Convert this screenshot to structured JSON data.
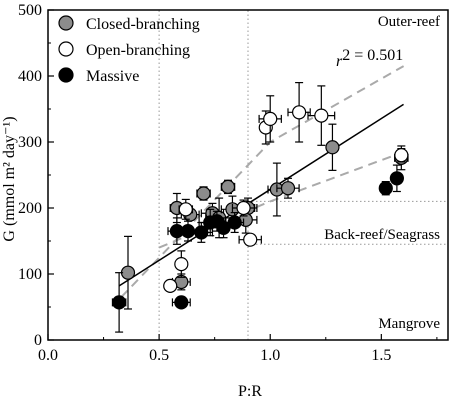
{
  "chart_data": {
    "type": "scatter",
    "xlabel": "P:R",
    "ylabel": "G (mmol m² day⁻¹)",
    "xlim": [
      0,
      1.8
    ],
    "ylim": [
      0,
      500
    ],
    "xticks": [
      "0.0",
      "0.5",
      "1.0",
      "1.5"
    ],
    "yticks": [
      "0",
      "100",
      "200",
      "300",
      "400",
      "500"
    ],
    "legend_position": "top-left",
    "grid": false,
    "r2_label": "r",
    "r2_value": "2 = 0.501",
    "regions": [
      {
        "label": "Outer-reef",
        "position": "top-right"
      },
      {
        "label": "Back-reef/Seagrass",
        "position": "middle-right"
      },
      {
        "label": "Mangrove",
        "position": "bottom-right"
      }
    ],
    "reference_lines": {
      "vertical_x": [
        0.5,
        0.9
      ],
      "horizontal_y": [
        145,
        210
      ]
    },
    "fit": {
      "x0": 0.32,
      "y0": 82,
      "x1": 1.6,
      "y1": 357,
      "ci_upper": [
        [
          0.33,
          65
        ],
        [
          1.0,
          300
        ],
        [
          1.6,
          415
        ]
      ],
      "ci_lower": [
        [
          0.5,
          140
        ],
        [
          1.0,
          210
        ],
        [
          1.6,
          285
        ]
      ]
    },
    "series": [
      {
        "name": "Closed-branching",
        "color": "#8c8c8c",
        "points": [
          {
            "x": 0.36,
            "y": 102,
            "yerr": 55,
            "xerr": 0
          },
          {
            "x": 0.58,
            "y": 200,
            "yerr": 22,
            "xerr": 0.03
          },
          {
            "x": 0.6,
            "y": 88,
            "yerr": 12,
            "xerr": 0.04
          },
          {
            "x": 0.64,
            "y": 190,
            "yerr": 8,
            "xerr": 0.04
          },
          {
            "x": 0.7,
            "y": 222,
            "yerr": 10,
            "xerr": 0.03
          },
          {
            "x": 0.74,
            "y": 192,
            "yerr": 15,
            "xerr": 0.05
          },
          {
            "x": 0.77,
            "y": 185,
            "yerr": 30,
            "xerr": 0.06
          },
          {
            "x": 0.81,
            "y": 232,
            "yerr": 10,
            "xerr": 0.03
          },
          {
            "x": 0.83,
            "y": 198,
            "yerr": 20,
            "xerr": 0.05
          },
          {
            "x": 0.9,
            "y": 200,
            "yerr": 15,
            "xerr": 0.04
          },
          {
            "x": 0.89,
            "y": 182,
            "yerr": 20,
            "xerr": 0.05
          },
          {
            "x": 1.03,
            "y": 228,
            "yerr": 40,
            "xerr": 0.04
          },
          {
            "x": 1.08,
            "y": 230,
            "yerr": 15,
            "xerr": 0.05
          },
          {
            "x": 1.28,
            "y": 292,
            "yerr": 35,
            "xerr": 0
          },
          {
            "x": 1.59,
            "y": 276,
            "yerr": 18,
            "xerr": 0.03
          }
        ]
      },
      {
        "name": "Open-branching",
        "color": "#ffffff",
        "points": [
          {
            "x": 0.55,
            "y": 82,
            "yerr": 0,
            "xerr": 0
          },
          {
            "x": 0.6,
            "y": 115,
            "yerr": 20,
            "xerr": 0
          },
          {
            "x": 0.62,
            "y": 198,
            "yerr": 15,
            "xerr": 0.03
          },
          {
            "x": 0.88,
            "y": 200,
            "yerr": 12,
            "xerr": 0.05
          },
          {
            "x": 0.91,
            "y": 152,
            "yerr": 6,
            "xerr": 0.05
          },
          {
            "x": 0.98,
            "y": 322,
            "yerr": 25,
            "xerr": 0
          },
          {
            "x": 1.0,
            "y": 335,
            "yerr": 35,
            "xerr": 0.05
          },
          {
            "x": 1.13,
            "y": 345,
            "yerr": 45,
            "xerr": 0.05
          },
          {
            "x": 1.23,
            "y": 340,
            "yerr": 45,
            "xerr": 0.06
          },
          {
            "x": 1.59,
            "y": 280,
            "yerr": 10,
            "xerr": 0
          }
        ]
      },
      {
        "name": "Massive",
        "color": "#000000",
        "points": [
          {
            "x": 0.32,
            "y": 57,
            "yerr": 45,
            "xerr": 0.03
          },
          {
            "x": 0.6,
            "y": 57,
            "yerr": 5,
            "xerr": 0.04
          },
          {
            "x": 0.58,
            "y": 165,
            "yerr": 20,
            "xerr": 0.04
          },
          {
            "x": 0.63,
            "y": 165,
            "yerr": 15,
            "xerr": 0.05
          },
          {
            "x": 0.69,
            "y": 163,
            "yerr": 15,
            "xerr": 0.05
          },
          {
            "x": 0.73,
            "y": 178,
            "yerr": 20,
            "xerr": 0.05
          },
          {
            "x": 0.76,
            "y": 180,
            "yerr": 15,
            "xerr": 0.04
          },
          {
            "x": 0.79,
            "y": 170,
            "yerr": 15,
            "xerr": 0.05
          },
          {
            "x": 0.84,
            "y": 178,
            "yerr": 15,
            "xerr": 0.04
          },
          {
            "x": 1.52,
            "y": 230,
            "yerr": 10,
            "xerr": 0
          },
          {
            "x": 1.57,
            "y": 245,
            "yerr": 20,
            "xerr": 0
          }
        ]
      }
    ]
  }
}
